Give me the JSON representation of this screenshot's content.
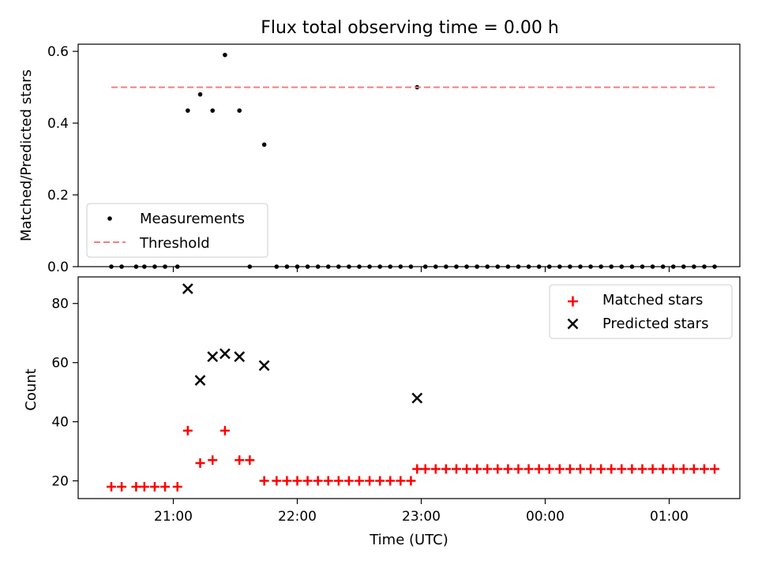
{
  "figure": {
    "title": "Flux total observing time = 0.00 h"
  },
  "chart_data": [
    {
      "type": "scatter",
      "panel": "top",
      "ylabel": "Matched/Predicted stars",
      "xlabel": "",
      "ylim": [
        0.0,
        0.62
      ],
      "yticks": [
        0.0,
        0.2,
        0.4,
        0.6
      ],
      "ytick_labels": [
        "0.0",
        "0.2",
        "0.4",
        "0.6"
      ],
      "legend_position": "lower-left",
      "legend": {
        "scatter": "Measurements",
        "line": "Threshold"
      },
      "series": [
        {
          "name": "Measurements",
          "marker": "dot",
          "color": "#000000",
          "points": [
            [
              "20:30",
              0.0
            ],
            [
              "20:35",
              0.0
            ],
            [
              "20:42",
              0.0
            ],
            [
              "20:46",
              0.0
            ],
            [
              "20:51",
              0.0
            ],
            [
              "20:56",
              0.0
            ],
            [
              "21:02",
              0.0
            ],
            [
              "21:07",
              0.435
            ],
            [
              "21:13",
              0.48
            ],
            [
              "21:19",
              0.435
            ],
            [
              "21:25",
              0.59
            ],
            [
              "21:32",
              0.435
            ],
            [
              "21:37",
              0.0
            ],
            [
              "21:44",
              0.34
            ],
            [
              "21:50",
              0.0
            ],
            [
              "21:55",
              0.0
            ],
            [
              "22:00",
              0.0
            ],
            [
              "22:05",
              0.0
            ],
            [
              "22:10",
              0.0
            ],
            [
              "22:15",
              0.0
            ],
            [
              "22:20",
              0.0
            ],
            [
              "22:25",
              0.0
            ],
            [
              "22:30",
              0.0
            ],
            [
              "22:35",
              0.0
            ],
            [
              "22:40",
              0.0
            ],
            [
              "22:45",
              0.0
            ],
            [
              "22:50",
              0.0
            ],
            [
              "22:55",
              0.0
            ],
            [
              "22:58",
              0.5
            ],
            [
              "23:02",
              0.0
            ],
            [
              "23:07",
              0.0
            ],
            [
              "23:12",
              0.0
            ],
            [
              "23:17",
              0.0
            ],
            [
              "23:22",
              0.0
            ],
            [
              "23:27",
              0.0
            ],
            [
              "23:32",
              0.0
            ],
            [
              "23:37",
              0.0
            ],
            [
              "23:42",
              0.0
            ],
            [
              "23:47",
              0.0
            ],
            [
              "23:52",
              0.0
            ],
            [
              "23:57",
              0.0
            ],
            [
              "00:02",
              0.0
            ],
            [
              "00:07",
              0.0
            ],
            [
              "00:12",
              0.0
            ],
            [
              "00:17",
              0.0
            ],
            [
              "00:22",
              0.0
            ],
            [
              "00:27",
              0.0
            ],
            [
              "00:32",
              0.0
            ],
            [
              "00:37",
              0.0
            ],
            [
              "00:42",
              0.0
            ],
            [
              "00:47",
              0.0
            ],
            [
              "00:52",
              0.0
            ],
            [
              "00:57",
              0.0
            ],
            [
              "01:02",
              0.0
            ],
            [
              "01:07",
              0.0
            ],
            [
              "01:12",
              0.0
            ],
            [
              "01:17",
              0.0
            ],
            [
              "01:22",
              0.0
            ]
          ]
        },
        {
          "name": "Threshold",
          "style": "dashed-line",
          "color": "#f08080",
          "points": [
            [
              "20:30",
              0.5
            ],
            [
              "01:22",
              0.5
            ]
          ]
        }
      ]
    },
    {
      "type": "scatter",
      "panel": "bottom",
      "ylabel": "Count",
      "xlabel": "Time (UTC)",
      "ylim": [
        14,
        89
      ],
      "yticks": [
        20,
        40,
        60,
        80
      ],
      "ytick_labels": [
        "20",
        "40",
        "60",
        "80"
      ],
      "xticks": [
        "21:00",
        "22:00",
        "23:00",
        "00:00",
        "01:00"
      ],
      "xtick_labels": [
        "21:00",
        "22:00",
        "23:00",
        "00:00",
        "01:00"
      ],
      "legend_position": "top-right",
      "series": [
        {
          "name": "Matched stars",
          "marker": "plus",
          "color": "#ff0000",
          "points": [
            [
              "20:30",
              18
            ],
            [
              "20:35",
              18
            ],
            [
              "20:42",
              18
            ],
            [
              "20:46",
              18
            ],
            [
              "20:51",
              18
            ],
            [
              "20:56",
              18
            ],
            [
              "21:02",
              18
            ],
            [
              "21:07",
              37
            ],
            [
              "21:13",
              26
            ],
            [
              "21:19",
              27
            ],
            [
              "21:25",
              37
            ],
            [
              "21:32",
              27
            ],
            [
              "21:37",
              27
            ],
            [
              "21:44",
              20
            ],
            [
              "21:50",
              20
            ],
            [
              "21:55",
              20
            ],
            [
              "22:00",
              20
            ],
            [
              "22:05",
              20
            ],
            [
              "22:10",
              20
            ],
            [
              "22:15",
              20
            ],
            [
              "22:20",
              20
            ],
            [
              "22:25",
              20
            ],
            [
              "22:30",
              20
            ],
            [
              "22:35",
              20
            ],
            [
              "22:40",
              20
            ],
            [
              "22:45",
              20
            ],
            [
              "22:50",
              20
            ],
            [
              "22:55",
              20
            ],
            [
              "22:58",
              24
            ],
            [
              "23:02",
              24
            ],
            [
              "23:07",
              24
            ],
            [
              "23:12",
              24
            ],
            [
              "23:17",
              24
            ],
            [
              "23:22",
              24
            ],
            [
              "23:27",
              24
            ],
            [
              "23:32",
              24
            ],
            [
              "23:37",
              24
            ],
            [
              "23:42",
              24
            ],
            [
              "23:47",
              24
            ],
            [
              "23:52",
              24
            ],
            [
              "23:57",
              24
            ],
            [
              "00:02",
              24
            ],
            [
              "00:07",
              24
            ],
            [
              "00:12",
              24
            ],
            [
              "00:17",
              24
            ],
            [
              "00:22",
              24
            ],
            [
              "00:27",
              24
            ],
            [
              "00:32",
              24
            ],
            [
              "00:37",
              24
            ],
            [
              "00:42",
              24
            ],
            [
              "00:47",
              24
            ],
            [
              "00:52",
              24
            ],
            [
              "00:57",
              24
            ],
            [
              "01:02",
              24
            ],
            [
              "01:07",
              24
            ],
            [
              "01:12",
              24
            ],
            [
              "01:17",
              24
            ],
            [
              "01:22",
              24
            ]
          ]
        },
        {
          "name": "Predicted stars",
          "marker": "x",
          "color": "#000000",
          "points": [
            [
              "21:07",
              85
            ],
            [
              "21:13",
              54
            ],
            [
              "21:19",
              62
            ],
            [
              "21:25",
              63
            ],
            [
              "21:32",
              62
            ],
            [
              "21:44",
              59
            ],
            [
              "22:58",
              48
            ]
          ]
        }
      ]
    }
  ]
}
